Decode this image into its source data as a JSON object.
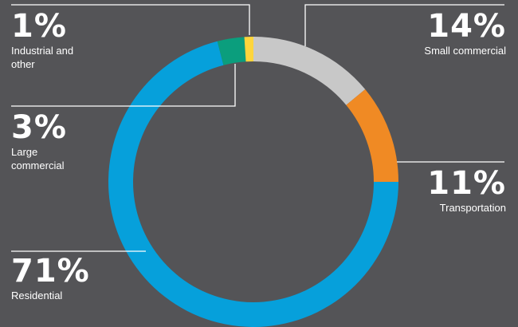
{
  "chart_data": {
    "type": "pie",
    "variant": "donut",
    "start_angle_deg": 0,
    "direction": "clockwise",
    "slices": [
      {
        "label": "Small commercial",
        "value": 14,
        "value_label": "14%",
        "color": "#c8c8c8"
      },
      {
        "label": "Transportation",
        "value": 11,
        "value_label": "11%",
        "color": "#f08a24"
      },
      {
        "label": "Residential",
        "value": 71,
        "value_label": "71%",
        "color": "#06a0db"
      },
      {
        "label": "Large commercial",
        "value": 3,
        "value_label": "3%",
        "color": "#0b9e7d"
      },
      {
        "label": "Industrial and other",
        "value": 1,
        "value_label": "1%",
        "color": "#fdd53c"
      }
    ],
    "title": "",
    "legend": "none"
  },
  "colors": {
    "background": "#545457",
    "leader_line": "#ffffff",
    "text": "#ffffff"
  }
}
